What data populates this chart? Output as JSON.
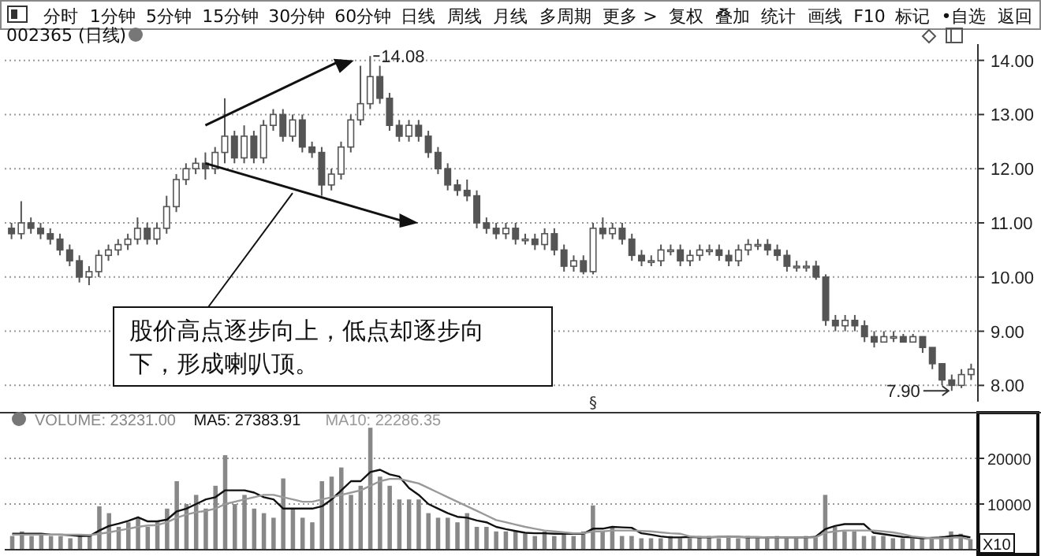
{
  "chart_data": [
    {
      "type": "other",
      "annotations": [
        "分时",
        "1分钟",
        "5分钟",
        "15分钟",
        "30分钟",
        "60分钟",
        "日线",
        "周线",
        "月线",
        "多周期",
        "更多 >",
        "复权",
        "叠加",
        "统计",
        "画线",
        "F10",
        "标记",
        "•自选",
        "返回"
      ]
    },
    {
      "type": "candlestick",
      "title": "002365 (日线)",
      "categories": [
        null,
        null,
        null,
        null,
        null,
        null,
        null,
        null,
        null,
        null,
        null,
        null,
        null,
        null,
        null,
        null,
        null,
        null,
        null,
        null,
        null,
        null,
        null,
        null,
        null,
        null,
        null,
        null,
        null,
        null,
        null,
        null,
        null,
        null,
        null,
        null,
        null,
        null,
        null,
        null,
        null,
        null,
        null,
        null,
        null,
        null,
        null,
        null,
        null,
        null,
        null,
        null,
        null,
        null,
        null,
        null,
        null,
        null,
        null,
        null,
        null,
        null,
        null,
        null,
        null,
        null,
        null,
        null,
        null,
        null,
        null,
        null,
        null,
        null,
        null,
        null,
        null,
        null,
        null,
        null,
        null,
        null,
        null,
        null,
        null,
        null,
        null,
        null,
        null,
        null,
        null,
        null,
        null,
        null,
        null,
        null,
        null,
        null,
        null,
        null
      ],
      "ohlc": [
        [
          10.9,
          11.0,
          10.7,
          10.8
        ],
        [
          10.8,
          11.4,
          10.7,
          11.0
        ],
        [
          11.0,
          11.1,
          10.8,
          10.9
        ],
        [
          10.9,
          11.0,
          10.7,
          10.8
        ],
        [
          10.8,
          10.9,
          10.6,
          10.7
        ],
        [
          10.7,
          10.8,
          10.4,
          10.5
        ],
        [
          10.5,
          10.6,
          10.2,
          10.3
        ],
        [
          10.3,
          10.4,
          9.9,
          10.0
        ],
        [
          10.0,
          10.2,
          9.85,
          10.1
        ],
        [
          10.1,
          10.5,
          10.0,
          10.4
        ],
        [
          10.4,
          10.6,
          10.3,
          10.5
        ],
        [
          10.5,
          10.7,
          10.4,
          10.6
        ],
        [
          10.6,
          10.8,
          10.5,
          10.7
        ],
        [
          10.7,
          11.1,
          10.6,
          10.9
        ],
        [
          10.9,
          11.0,
          10.6,
          10.7
        ],
        [
          10.7,
          11.0,
          10.6,
          10.9
        ],
        [
          10.9,
          11.5,
          10.8,
          11.3
        ],
        [
          11.3,
          11.9,
          11.2,
          11.8
        ],
        [
          11.8,
          12.1,
          11.7,
          12.0
        ],
        [
          12.0,
          12.2,
          11.9,
          12.1
        ],
        [
          12.1,
          12.3,
          11.8,
          12.0
        ],
        [
          12.0,
          12.4,
          11.9,
          12.3
        ],
        [
          12.3,
          13.3,
          12.1,
          12.6
        ],
        [
          12.6,
          12.7,
          12.1,
          12.2
        ],
        [
          12.2,
          12.8,
          12.1,
          12.6
        ],
        [
          12.6,
          12.7,
          12.1,
          12.2
        ],
        [
          12.2,
          12.9,
          12.1,
          12.8
        ],
        [
          12.8,
          13.1,
          12.7,
          13.0
        ],
        [
          13.0,
          13.1,
          12.5,
          12.6
        ],
        [
          12.6,
          13.0,
          12.5,
          12.9
        ],
        [
          12.9,
          13.0,
          12.3,
          12.4
        ],
        [
          12.4,
          12.5,
          12.2,
          12.3
        ],
        [
          12.3,
          12.4,
          11.5,
          11.7
        ],
        [
          11.7,
          12.0,
          11.6,
          11.9
        ],
        [
          11.9,
          12.5,
          11.8,
          12.4
        ],
        [
          12.4,
          13.0,
          12.3,
          12.9
        ],
        [
          12.9,
          13.9,
          12.8,
          13.2
        ],
        [
          13.2,
          14.08,
          13.1,
          13.7
        ],
        [
          13.7,
          13.9,
          13.2,
          13.3
        ],
        [
          13.3,
          13.4,
          12.7,
          12.8
        ],
        [
          12.8,
          12.9,
          12.5,
          12.6
        ],
        [
          12.6,
          12.9,
          12.5,
          12.8
        ],
        [
          12.8,
          12.9,
          12.5,
          12.6
        ],
        [
          12.6,
          12.7,
          12.2,
          12.3
        ],
        [
          12.3,
          12.4,
          11.9,
          12.0
        ],
        [
          12.0,
          12.1,
          11.6,
          11.7
        ],
        [
          11.7,
          11.8,
          11.5,
          11.6
        ],
        [
          11.6,
          11.8,
          11.4,
          11.5
        ],
        [
          11.5,
          11.6,
          10.9,
          11.0
        ],
        [
          11.0,
          11.1,
          10.8,
          10.9
        ],
        [
          10.9,
          11.0,
          10.7,
          10.8
        ],
        [
          10.8,
          11.0,
          10.7,
          10.9
        ],
        [
          10.9,
          11.0,
          10.6,
          10.7
        ],
        [
          10.7,
          10.8,
          10.6,
          10.7
        ],
        [
          10.7,
          10.8,
          10.5,
          10.6
        ],
        [
          10.6,
          10.9,
          10.5,
          10.8
        ],
        [
          10.8,
          10.9,
          10.4,
          10.5
        ],
        [
          10.5,
          10.6,
          10.1,
          10.2
        ],
        [
          10.2,
          10.4,
          10.1,
          10.3
        ],
        [
          10.3,
          10.4,
          10.05,
          10.1
        ],
        [
          10.1,
          11.0,
          10.05,
          10.9
        ],
        [
          10.9,
          11.1,
          10.7,
          10.8
        ],
        [
          10.8,
          11.0,
          10.7,
          10.9
        ],
        [
          10.9,
          11.0,
          10.6,
          10.7
        ],
        [
          10.7,
          10.8,
          10.3,
          10.4
        ],
        [
          10.4,
          10.5,
          10.2,
          10.3
        ],
        [
          10.3,
          10.4,
          10.2,
          10.3
        ],
        [
          10.3,
          10.6,
          10.2,
          10.5
        ],
        [
          10.5,
          10.6,
          10.4,
          10.5
        ],
        [
          10.5,
          10.6,
          10.2,
          10.3
        ],
        [
          10.3,
          10.5,
          10.2,
          10.4
        ],
        [
          10.4,
          10.6,
          10.3,
          10.5
        ],
        [
          10.5,
          10.6,
          10.4,
          10.5
        ],
        [
          10.5,
          10.6,
          10.3,
          10.4
        ],
        [
          10.4,
          10.5,
          10.2,
          10.3
        ],
        [
          10.3,
          10.6,
          10.2,
          10.5
        ],
        [
          10.5,
          10.7,
          10.4,
          10.6
        ],
        [
          10.6,
          10.7,
          10.5,
          10.6
        ],
        [
          10.6,
          10.7,
          10.4,
          10.5
        ],
        [
          10.5,
          10.6,
          10.3,
          10.4
        ],
        [
          10.4,
          10.5,
          10.1,
          10.2
        ],
        [
          10.2,
          10.3,
          10.1,
          10.2
        ],
        [
          10.2,
          10.3,
          10.1,
          10.2
        ],
        [
          10.2,
          10.3,
          9.95,
          10.0
        ],
        [
          10.0,
          10.05,
          9.1,
          9.2
        ],
        [
          9.2,
          9.3,
          9.0,
          9.1
        ],
        [
          9.1,
          9.3,
          9.0,
          9.2
        ],
        [
          9.2,
          9.3,
          9.0,
          9.1
        ],
        [
          9.1,
          9.2,
          8.8,
          8.9
        ],
        [
          8.9,
          9.0,
          8.7,
          8.8
        ],
        [
          8.8,
          9.0,
          8.8,
          8.9
        ],
        [
          8.9,
          9.0,
          8.8,
          8.9
        ],
        [
          8.9,
          8.95,
          8.8,
          8.8
        ],
        [
          8.8,
          8.95,
          8.8,
          8.9
        ],
        [
          8.9,
          8.9,
          8.6,
          8.7
        ],
        [
          8.7,
          8.7,
          8.3,
          8.4
        ],
        [
          8.4,
          8.4,
          8.0,
          8.1
        ],
        [
          8.1,
          8.2,
          7.9,
          8.0
        ],
        [
          8.0,
          8.3,
          7.95,
          8.2
        ],
        [
          8.2,
          8.4,
          8.1,
          8.3
        ]
      ],
      "ylim": [
        7.7,
        14.3
      ],
      "yticks": [
        {
          "value": 8,
          "label": "8.00"
        },
        {
          "value": 9,
          "label": "9.00"
        },
        {
          "value": 10,
          "label": "10.00"
        },
        {
          "value": 11,
          "label": "11.00"
        },
        {
          "value": 12,
          "label": "12.00"
        },
        {
          "value": 13,
          "label": "13.00"
        },
        {
          "value": 14,
          "label": "14.00"
        }
      ],
      "grid": "y",
      "tick_labels": "y",
      "annotations": [
        "14.08",
        "7.90",
        "股价高点逐步向上，低点却逐步向下，形成喇叭顶。",
        "§"
      ]
    },
    {
      "type": "bar",
      "categories": [
        null,
        null,
        null,
        null,
        null,
        null,
        null,
        null,
        null,
        null,
        null,
        null,
        null,
        null,
        null,
        null,
        null,
        null,
        null,
        null,
        null,
        null,
        null,
        null,
        null,
        null,
        null,
        null,
        null,
        null,
        null,
        null,
        null,
        null,
        null,
        null,
        null,
        null,
        null,
        null,
        null,
        null,
        null,
        null,
        null,
        null,
        null,
        null,
        null,
        null,
        null,
        null,
        null,
        null,
        null,
        null,
        null,
        null,
        null,
        null,
        null,
        null,
        null,
        null,
        null,
        null,
        null,
        null,
        null,
        null,
        null,
        null,
        null,
        null,
        null,
        null,
        null,
        null,
        null,
        null,
        null,
        null,
        null,
        null,
        null,
        null,
        null,
        null,
        null,
        null,
        null,
        null,
        null,
        null,
        null,
        null,
        null,
        null,
        null,
        null
      ],
      "series": [
        {
          "name": "VOLUME: 23231.00",
          "type": "bar",
          "color": "#888888",
          "values": [
            3000,
            4000,
            3000,
            3500,
            3000,
            3000,
            2500,
            3000,
            3000,
            9500,
            8000,
            5000,
            6000,
            7000,
            5000,
            6000,
            9000,
            15000,
            10000,
            12000,
            9000,
            14000,
            20700,
            10000,
            12000,
            9000,
            8000,
            7000,
            15600,
            9000,
            7000,
            6000,
            15000,
            16000,
            18000,
            12000,
            14000,
            26700,
            16000,
            14000,
            11000,
            11000,
            11000,
            8000,
            7000,
            7000,
            6000,
            8000,
            5000,
            5000,
            4000,
            4000,
            4000,
            3500,
            3000,
            4000,
            3000,
            3500,
            3000,
            4000,
            9700,
            4000,
            5000,
            3000,
            3000,
            2500,
            2500,
            2500,
            3000,
            2500,
            2500,
            3000,
            3000,
            2500,
            3000,
            2500,
            3000,
            2500,
            2500,
            3000,
            2500,
            2500,
            3000,
            3000,
            12000,
            5000,
            4000,
            4000,
            3000,
            3000,
            3000,
            2500,
            2500,
            2500,
            2500,
            2500,
            3000,
            4000,
            3500,
            2300
          ]
        },
        {
          "name": "MA5: 27383.91",
          "type": "line",
          "color": "#111111",
          "values": [
            3500,
            3500,
            3500,
            3500,
            3300,
            3300,
            3200,
            3000,
            3000,
            4200,
            5200,
            5700,
            6300,
            7100,
            6200,
            6200,
            6600,
            8400,
            9000,
            10000,
            11000,
            11500,
            13000,
            13000,
            13000,
            12500,
            11500,
            11000,
            9000,
            9000,
            9000,
            9000,
            9500,
            11000,
            13000,
            15000,
            15000,
            17000,
            17500,
            16500,
            16000,
            13500,
            12000,
            10000,
            9000,
            8000,
            7200,
            7000,
            6400,
            6000,
            5000,
            4500,
            4100,
            3700,
            3600,
            3600,
            3500,
            3500,
            3500,
            3500,
            4600,
            4600,
            5000,
            4900,
            4800,
            3600,
            3300,
            2900,
            2700,
            2700,
            2800,
            2700,
            2700,
            2800,
            2800,
            2800,
            2700,
            2700,
            2700,
            2700,
            2700,
            2700,
            2700,
            2800,
            4500,
            5200,
            5600,
            5600,
            5600,
            3700,
            3400,
            3100,
            2800,
            2700,
            2500,
            2600,
            2700,
            3000,
            3100,
            2700
          ]
        },
        {
          "name": "MA10: 22286.35",
          "type": "line",
          "color": "#999999",
          "values": [
            3300,
            3300,
            3300,
            3300,
            3300,
            3300,
            3300,
            3300,
            3200,
            3500,
            3800,
            4200,
            4600,
            5000,
            5300,
            5400,
            6000,
            7000,
            7700,
            8200,
            8500,
            9000,
            10000,
            10500,
            11000,
            11500,
            12000,
            12000,
            11500,
            11000,
            10500,
            10500,
            11000,
            11500,
            12000,
            12500,
            13000,
            14000,
            15000,
            15500,
            15500,
            15000,
            14500,
            13500,
            12500,
            11500,
            10500,
            9500,
            8500,
            7500,
            6500,
            6000,
            5500,
            5000,
            4600,
            4200,
            4000,
            3800,
            3600,
            3600,
            4000,
            4000,
            4200,
            4200,
            4200,
            4100,
            4000,
            3800,
            3600,
            3500,
            2900,
            2800,
            2800,
            2800,
            2800,
            2800,
            2800,
            2800,
            2700,
            2700,
            2700,
            2700,
            2700,
            2700,
            3700,
            4000,
            4200,
            4200,
            4200,
            4200,
            4000,
            3800,
            3400,
            2900,
            2700,
            2500,
            2500,
            2600,
            2700,
            2200
          ]
        }
      ],
      "ylim": [
        0,
        30000
      ],
      "yticks": [
        10000,
        20000
      ],
      "grid": "y",
      "tick_labels": "y",
      "legend": "top left",
      "annotations": [
        "X10"
      ]
    }
  ]
}
